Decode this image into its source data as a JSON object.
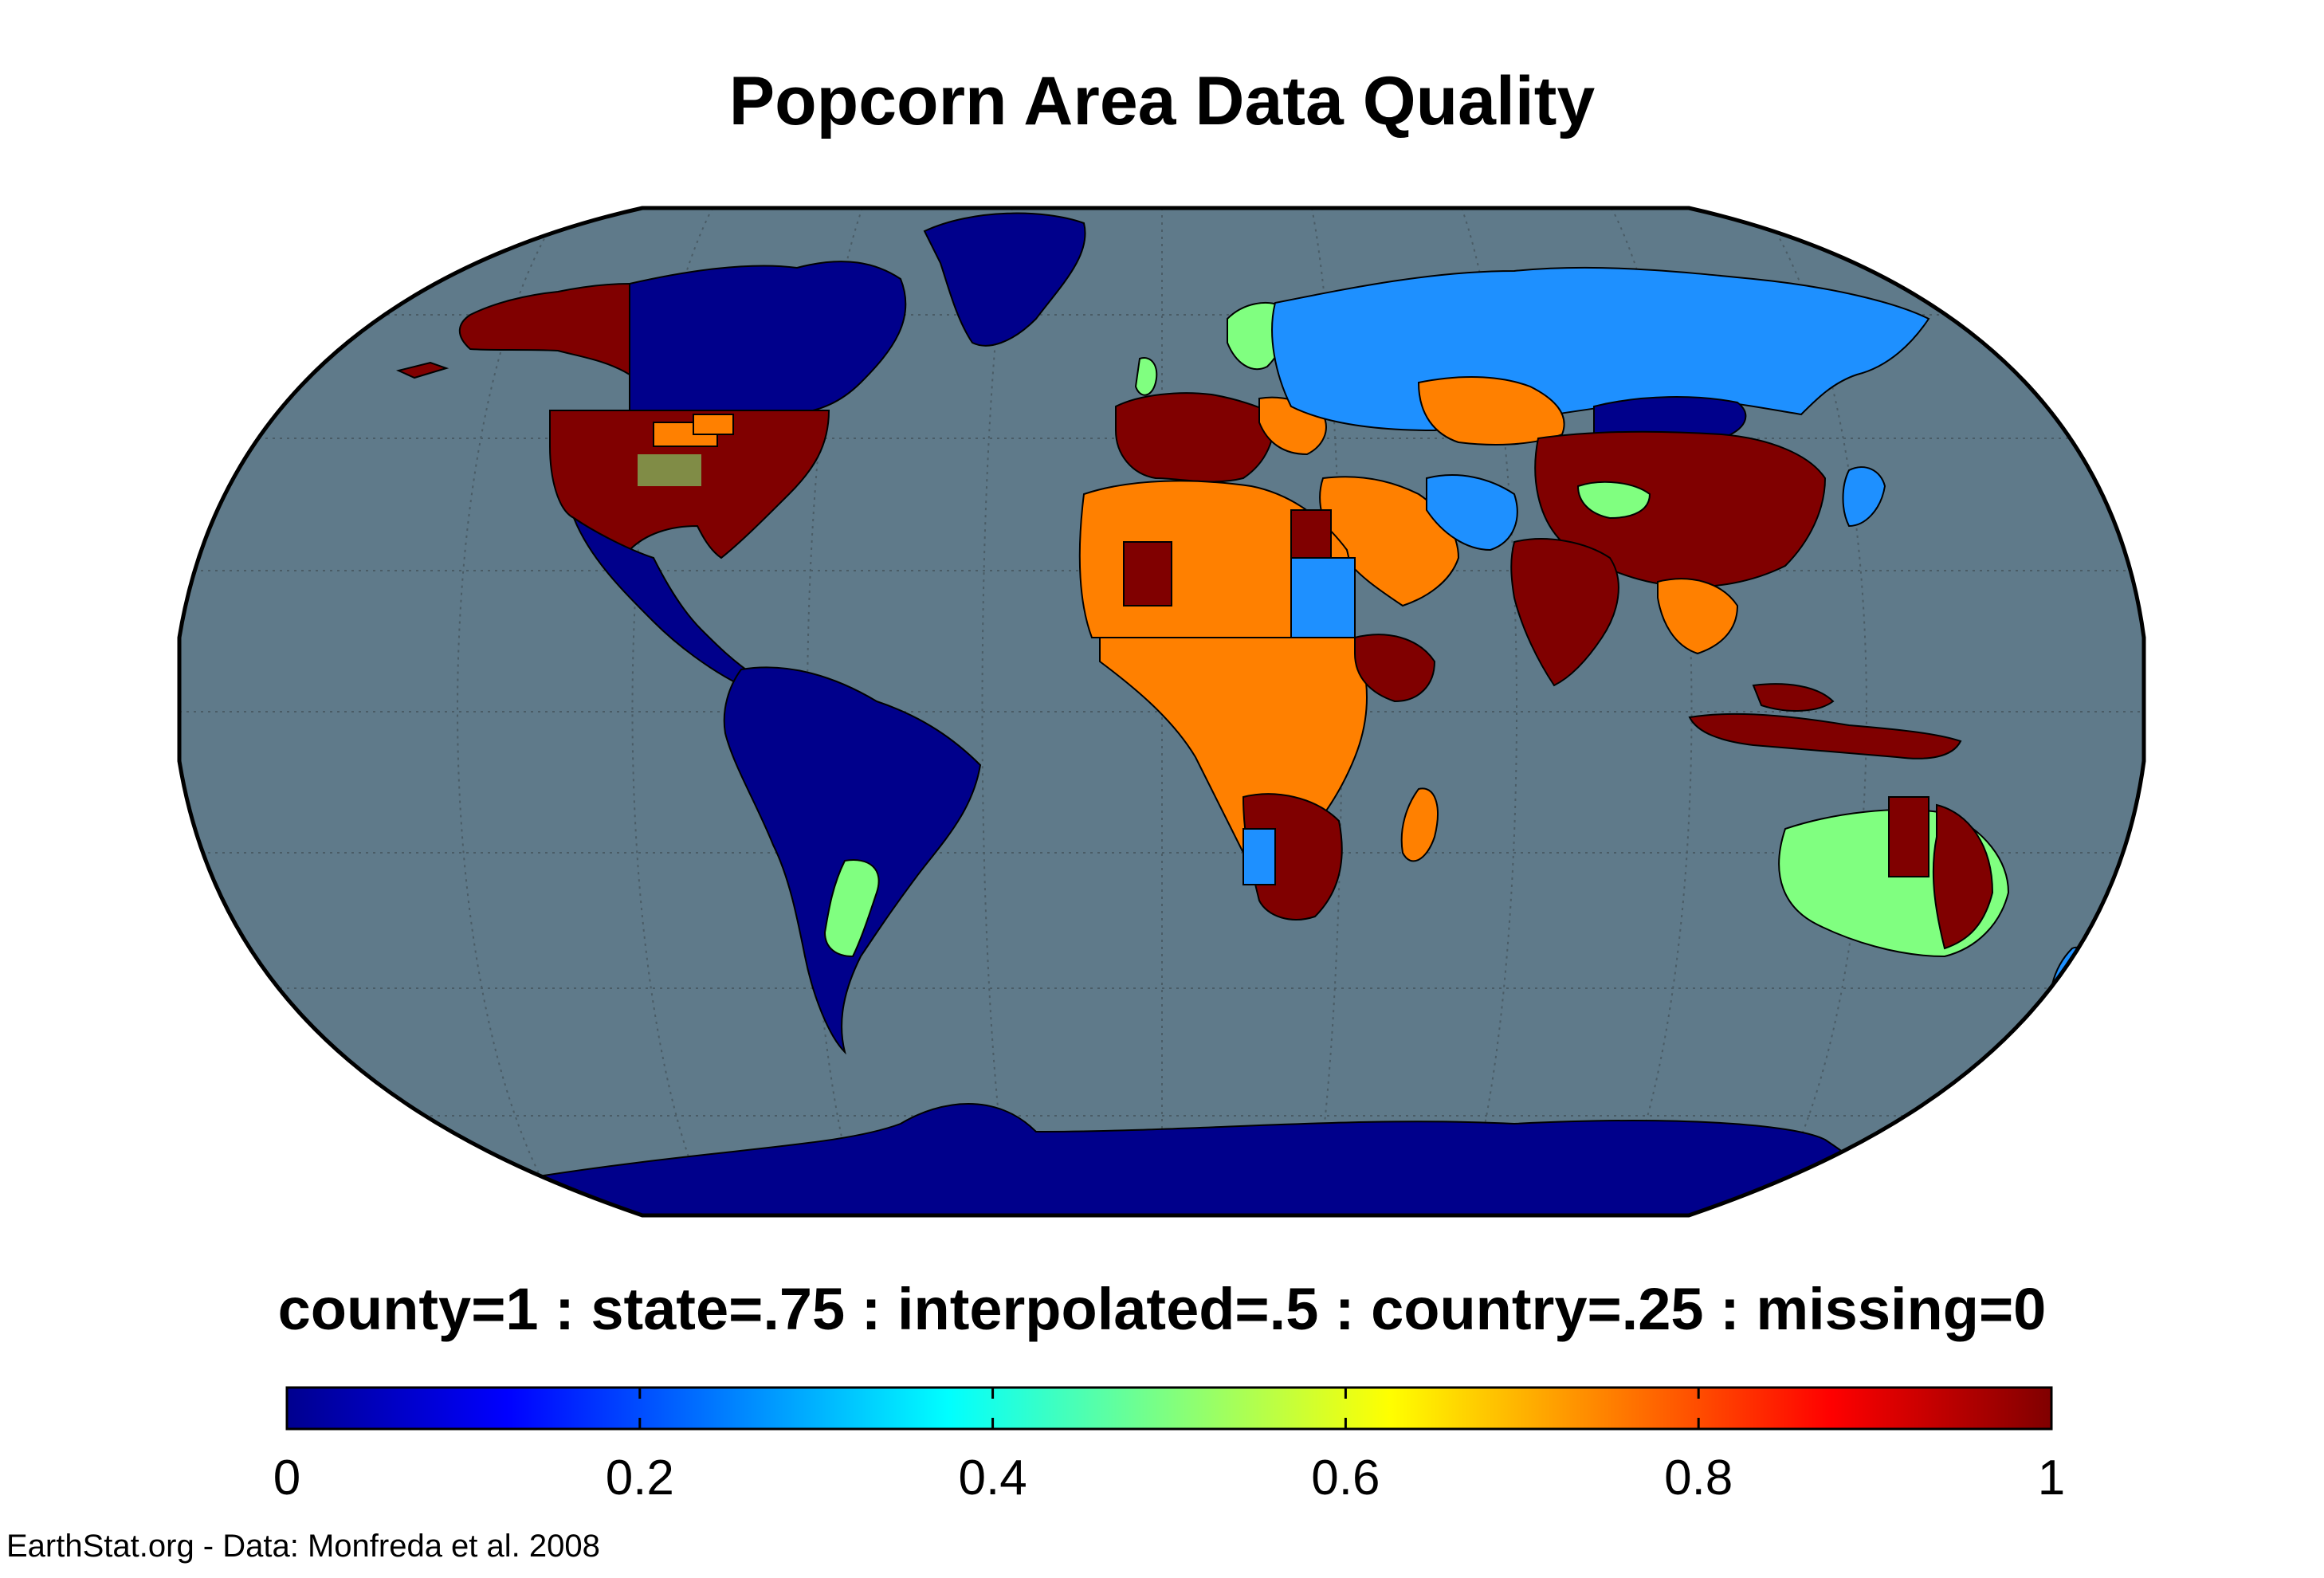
{
  "title": "Popcorn Area Data Quality",
  "subtitle": "county=1 : state=.75 : interpolated=.5 : country=.25 : missing=0",
  "credit": "EarthStat.org - Data: Monfreda et al. 2008",
  "colorbar": {
    "min": 0,
    "max": 1,
    "ticks": [
      "0",
      "0.2",
      "0.4",
      "0.6",
      "0.8",
      "1"
    ],
    "colormap": "jet"
  },
  "legend_levels": [
    {
      "label": "county",
      "value": 1
    },
    {
      "label": "state",
      "value": 0.75
    },
    {
      "label": "interpolated",
      "value": 0.5
    },
    {
      "label": "country",
      "value": 0.25
    },
    {
      "label": "missing",
      "value": 0
    }
  ],
  "colors": {
    "ocean": "#5f7a8a",
    "missing": "#00008b",
    "country": "#1e90ff",
    "interpolated": "#80ff80",
    "state": "#ff8000",
    "county": "#800000"
  },
  "map": {
    "projection": "robinson",
    "graticule": true
  },
  "regions": [
    {
      "name": "Alaska",
      "value": 1
    },
    {
      "name": "Canada",
      "value": 0
    },
    {
      "name": "Greenland",
      "value": 0
    },
    {
      "name": "United States",
      "value": 1
    },
    {
      "name": "Mexico and Central America",
      "value": 0
    },
    {
      "name": "South America",
      "value": 0
    },
    {
      "name": "Argentina",
      "value": 0.5
    },
    {
      "name": "Western Europe",
      "value": 1
    },
    {
      "name": "Scandinavia",
      "value": 0.5
    },
    {
      "name": "Russia",
      "value": 0.25
    },
    {
      "name": "Kazakhstan",
      "value": 0.75
    },
    {
      "name": "North Africa",
      "value": 0.75
    },
    {
      "name": "West Africa",
      "value": 0.75
    },
    {
      "name": "Central Africa",
      "value": 0.75
    },
    {
      "name": "Ethiopia",
      "value": 1
    },
    {
      "name": "Southern Africa",
      "value": 1
    },
    {
      "name": "Madagascar",
      "value": 0.75
    },
    {
      "name": "Middle East",
      "value": 0.75
    },
    {
      "name": "Mongolia",
      "value": 0
    },
    {
      "name": "China",
      "value": 1
    },
    {
      "name": "India",
      "value": 1
    },
    {
      "name": "Southeast Asia",
      "value": 0.75
    },
    {
      "name": "Indonesia",
      "value": 1
    },
    {
      "name": "Japan and Korea",
      "value": 0.25
    },
    {
      "name": "Australia",
      "value": 0.5
    },
    {
      "name": "Eastern Australia",
      "value": 1
    },
    {
      "name": "New Zealand",
      "value": 0.25
    },
    {
      "name": "Antarctica",
      "value": 0
    }
  ]
}
